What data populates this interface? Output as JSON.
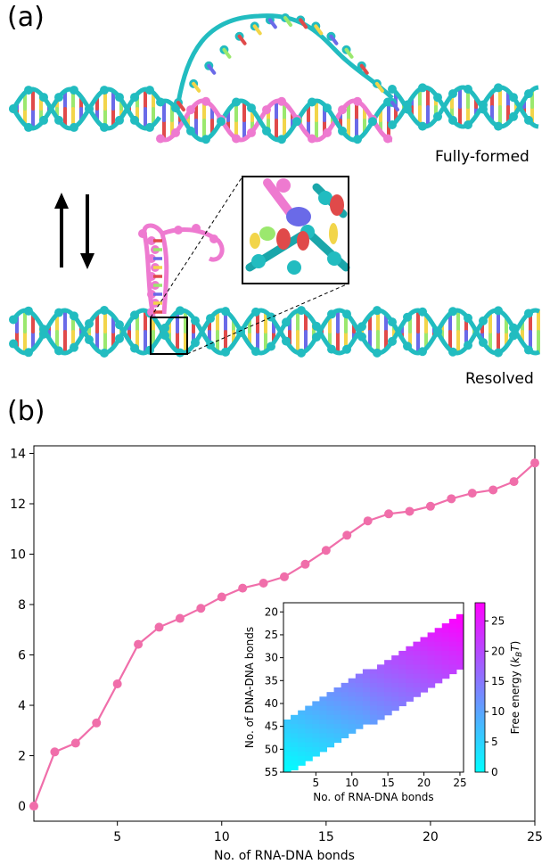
{
  "panel_a": {
    "label": "(a)",
    "top_state_label": "Fully-formed",
    "bottom_state_label": "Resolved"
  },
  "panel_b": {
    "label": "(b)"
  },
  "colors": {
    "curve": "#f06eaa",
    "dna": "#22bcc0",
    "rna": "#ee7ad0",
    "heatmap_low": "#00ffff",
    "heatmap_high": "#ff00ff"
  },
  "chart_data": [
    {
      "type": "line",
      "title": "",
      "xlabel": "No. of RNA-DNA bonds",
      "ylabel": "",
      "xlim": [
        1,
        25
      ],
      "ylim": [
        -0.6,
        14.3
      ],
      "xticks": [
        5,
        10,
        15,
        20,
        25
      ],
      "yticks": [
        0,
        2,
        4,
        6,
        8,
        10,
        12,
        14
      ],
      "grid": false,
      "series": [
        {
          "x": [
            1,
            2,
            3,
            4,
            5,
            6,
            7,
            8,
            9,
            10,
            11,
            12,
            13,
            14,
            15,
            16,
            17,
            18,
            19,
            20,
            21,
            22,
            23,
            24,
            25
          ],
          "y": [
            0.0,
            2.15,
            2.5,
            3.3,
            4.85,
            6.42,
            7.1,
            7.45,
            7.85,
            8.3,
            8.65,
            8.85,
            9.1,
            9.6,
            10.15,
            10.75,
            11.32,
            11.6,
            11.7,
            11.9,
            12.2,
            12.42,
            12.55,
            12.88,
            13.62
          ]
        }
      ]
    },
    {
      "type": "heatmap",
      "title": "",
      "xlabel": "No. of RNA-DNA bonds",
      "ylabel": "No. of DNA-DNA bonds",
      "colorbar_label": "Free energy (k_B T)",
      "colorbar_ticks": [
        0,
        5,
        10,
        15,
        20,
        25
      ],
      "color_range": [
        0,
        28
      ],
      "xticks": [
        5,
        10,
        15,
        20,
        25
      ],
      "yticks": [
        20,
        25,
        30,
        35,
        40,
        45,
        50,
        55
      ],
      "xlim": [
        1,
        25
      ],
      "ylim": [
        55,
        18
      ],
      "band": {
        "x_start": 1,
        "x_end": 25,
        "ymin_start": 44,
        "ymin_end": 21,
        "ymax_start": 55,
        "ymax_end": 32
      }
    }
  ]
}
